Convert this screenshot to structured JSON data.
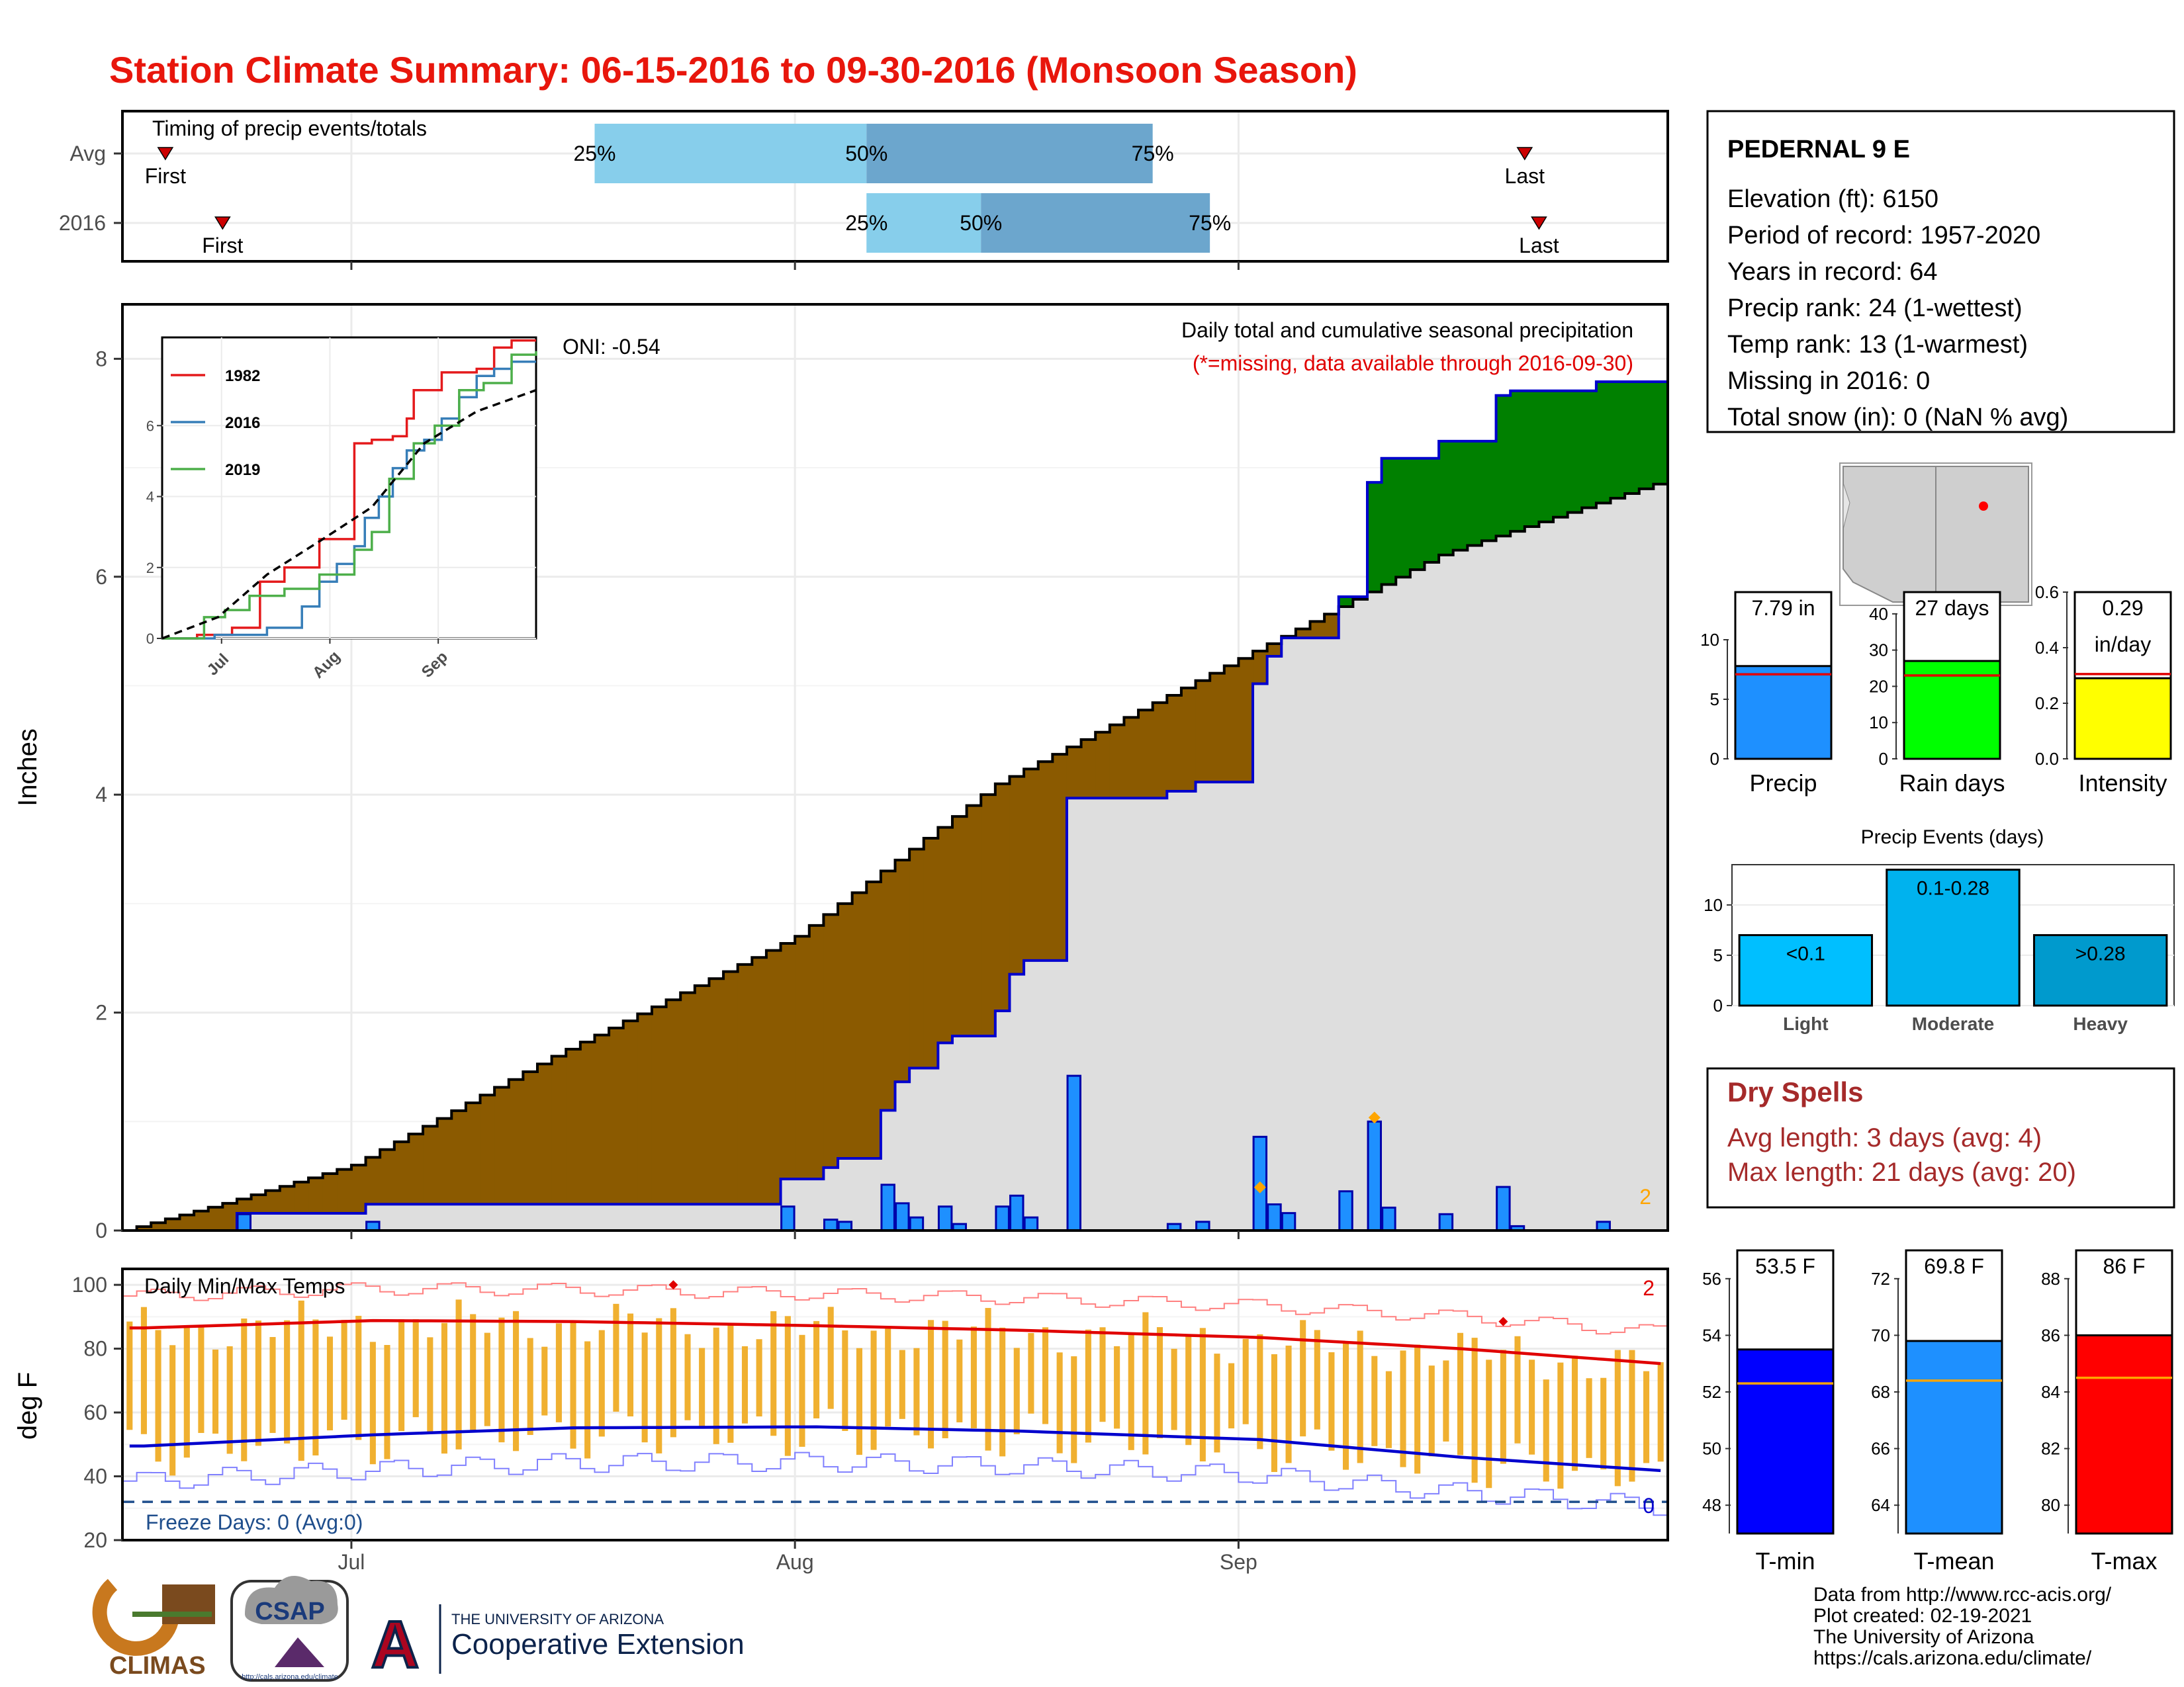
{
  "title": "Station Climate Summary: 06-15-2016 to 09-30-2016 (Monsoon Season)",
  "timing": {
    "title": "Timing of precip events/totals",
    "rows": [
      {
        "label": "Avg",
        "first_label": "First",
        "last_label": "Last",
        "first": "06-17",
        "last": "09-20",
        "q25": "07-17",
        "q50": "08-05",
        "q75": "08-25",
        "pct_labels": [
          "25%",
          "50%",
          "75%"
        ]
      },
      {
        "label": "2016",
        "first_label": "First",
        "last_label": "Last",
        "first": "06-21",
        "last": "09-21",
        "q25": "08-05",
        "q50": "08-13",
        "q75": "08-29",
        "pct_labels": [
          "25%",
          "50%",
          "75%"
        ]
      }
    ],
    "colors": {
      "q25_50": "#87ceeb",
      "q50_75": "#6ca6cd",
      "marker": "#cc0000"
    }
  },
  "station": {
    "name": "PEDERNAL 9 E",
    "lines": [
      "Elevation (ft): 6150",
      "Period of record: 1957-2020",
      "Years in record: 64",
      "Precip rank: 24 (1-wettest)",
      "Temp rank: 13 (1-warmest)",
      "Missing in 2016: 0",
      "Total snow (in): 0 (NaN % avg)"
    ]
  },
  "precip_panel": {
    "ylabel": "Inches",
    "annotation_title": "Daily total and cumulative seasonal precipitation",
    "annotation_note": "(*=missing, data available through 2016-09-30)",
    "oni": "ONI: -0.54",
    "count_label": "2",
    "colors": {
      "observed_line": "#0000cd",
      "above": "#008000",
      "below": "#8b5a00",
      "bars": "#1e90ff",
      "normal_fill": "#dedede",
      "missing_marker": "#ffa500"
    }
  },
  "temp_panel": {
    "ylabel": "deg F",
    "title": "Daily Min/Max Temps",
    "freeze": "Freeze Days: 0 (Avg:0)",
    "record_count": "2",
    "freeze_count": "0",
    "colors": {
      "bars": "#f0b030",
      "avg_max": "#e00000",
      "avg_min": "#0000cd",
      "record_max": "#ff8080",
      "record_min": "#8080ff",
      "freeze_line": "#1f4e8c"
    }
  },
  "inset": {
    "series": [
      {
        "name": "1982",
        "color": "#e41a1c"
      },
      {
        "name": "2016",
        "color": "#377eb8"
      },
      {
        "name": "2019",
        "color": "#4daf4a"
      }
    ],
    "xticks": [
      "Jul",
      "Aug",
      "Sep"
    ]
  },
  "map": {
    "caption": ""
  },
  "bar_summary": {
    "precip": {
      "value_label": "7.79 in",
      "label": "Precip",
      "value": 7.79,
      "avg": 7.1,
      "color": "#1e90ff"
    },
    "raindays": {
      "value_label": "27 days",
      "label": "Rain days",
      "value": 27,
      "avg": 23,
      "color": "#00ff00"
    },
    "intensity": {
      "value_label": "0.29",
      "value_label2": "in/day",
      "label": "Intensity",
      "value": 0.29,
      "avg": 0.305,
      "color": "#ffff00"
    }
  },
  "events": {
    "title": "Precip Events (days)",
    "items": [
      {
        "label": "Light",
        "value_label": "<0.1",
        "value": 7,
        "color": "#00bfff"
      },
      {
        "label": "Moderate",
        "value_label": "0.1-0.28",
        "value": 13.5,
        "color": "#00b2ee"
      },
      {
        "label": "Heavy",
        "value_label": ">0.28",
        "value": 7,
        "color": "#009acd"
      }
    ]
  },
  "dry_spells": {
    "title": "Dry Spells",
    "avg": "Avg length: 3 days (avg: 4)",
    "max": "Max length: 21 days (avg: 20)"
  },
  "temp_summary": {
    "tmin": {
      "value_label": "53.5 F",
      "label": "T-min",
      "value": 53.5,
      "avg": 52.3,
      "ylim": [
        47,
        57
      ],
      "ticks": [
        48,
        50,
        52,
        54,
        56
      ],
      "color": "#0000ff"
    },
    "tmean": {
      "value_label": "69.8 F",
      "label": "T-mean",
      "value": 69.8,
      "avg": 68.4,
      "ylim": [
        63,
        73
      ],
      "ticks": [
        64,
        66,
        68,
        70,
        72
      ],
      "color": "#1e90ff"
    },
    "tmax": {
      "value_label": "86 F",
      "label": "T-max",
      "value": 86,
      "avg": 84.5,
      "ylim": [
        79,
        89
      ],
      "ticks": [
        80,
        82,
        84,
        86,
        88
      ],
      "color": "#ff0000"
    }
  },
  "footer": {
    "credits": [
      "Data from http://www.rcc-acis.org/",
      "Plot created: 02-19-2021",
      "The University of Arizona",
      "https://cals.arizona.edu/climate/"
    ],
    "logos": {
      "climas": "CLIMAS",
      "csap": "CSAP",
      "csap_url": "http://cals.arizona.edu/climate",
      "ua_small": "THE UNIVERSITY OF ARIZONA",
      "ua_big": "Cooperative Extension",
      "ua_letter": "A"
    }
  },
  "chart_data": [
    {
      "type": "area",
      "title": "Daily total and cumulative seasonal precipitation",
      "ylabel": "Inches",
      "xlim": [
        "06-15",
        "09-30"
      ],
      "ylim": [
        0,
        8.5
      ],
      "xticks": [
        "Jul",
        "Aug",
        "Sep"
      ],
      "yticks": [
        0,
        2,
        4,
        6,
        8
      ],
      "cumulative_normal": {
        "x": [
          "06-15",
          "06-22",
          "07-01",
          "07-15",
          "08-01",
          "08-15",
          "09-01",
          "09-15",
          "09-30"
        ],
        "y": [
          0,
          0.25,
          0.6,
          1.6,
          2.7,
          4.1,
          5.25,
          6.2,
          6.85
        ]
      },
      "daily_2016": {
        "x": [
          "06-22",
          "07-01",
          "07-30",
          "08-02",
          "08-03",
          "08-06",
          "08-07",
          "08-08",
          "08-10",
          "08-11",
          "08-14",
          "08-15",
          "08-16",
          "08-19",
          "08-26",
          "08-28",
          "09-01",
          "09-02",
          "09-03",
          "09-07",
          "09-09",
          "09-10",
          "09-14",
          "09-18",
          "09-19",
          "09-25"
        ],
        "y": [
          0.15,
          0.08,
          0.22,
          0.1,
          0.08,
          0.42,
          0.25,
          0.12,
          0.22,
          0.06,
          0.22,
          0.32,
          0.12,
          1.42,
          0.06,
          0.08,
          0.86,
          0.24,
          0.16,
          0.36,
          1.0,
          0.21,
          0.15,
          0.4,
          0.04,
          0.08
        ]
      },
      "cumulative_2016_total": 7.79
    },
    {
      "type": "line",
      "title": "",
      "xticks": [
        "Jul",
        "Aug",
        "Sep"
      ],
      "yticks": [
        0,
        2,
        4,
        6
      ],
      "ylim": [
        0,
        8.3
      ],
      "series": [
        {
          "name": "1982",
          "x": [
            0,
            10,
            20,
            28,
            35,
            45,
            55,
            60,
            66,
            70,
            72,
            80,
            90,
            95,
            100,
            107
          ],
          "y": [
            0,
            0.1,
            0.3,
            1.6,
            2.0,
            2.8,
            5.5,
            5.6,
            5.7,
            6.2,
            7.0,
            7.5,
            7.6,
            8.2,
            8.4,
            8.4
          ]
        },
        {
          "name": "2016",
          "x": [
            0,
            15,
            30,
            40,
            45,
            50,
            55,
            58,
            62,
            66,
            70,
            75,
            80,
            85,
            90,
            95,
            100,
            107
          ],
          "y": [
            0,
            0.1,
            0.3,
            0.9,
            1.6,
            2.1,
            2.6,
            3.4,
            4.0,
            4.8,
            5.3,
            5.6,
            6.2,
            6.8,
            7.4,
            7.6,
            7.8,
            7.8
          ]
        },
        {
          "name": "2019",
          "x": [
            0,
            12,
            18,
            25,
            35,
            45,
            55,
            60,
            65,
            72,
            78,
            85,
            92,
            100,
            107
          ],
          "y": [
            0,
            0.6,
            0.8,
            1.2,
            1.4,
            1.8,
            2.5,
            3.0,
            4.5,
            5.5,
            6.0,
            7.0,
            7.2,
            8.0,
            8.1
          ]
        },
        {
          "name": "Avg",
          "x": [
            0,
            16,
            30,
            46,
            60,
            75,
            90,
            107
          ],
          "y": [
            0,
            0.6,
            1.8,
            2.8,
            3.7,
            5.5,
            6.4,
            7.0
          ]
        }
      ]
    },
    {
      "type": "bar",
      "title": "Daily Min/Max Temps",
      "ylabel": "deg F",
      "ylim": [
        20,
        105
      ],
      "yticks": [
        20,
        40,
        60,
        80,
        100
      ],
      "xticks": [
        "Jul",
        "Aug",
        "Sep"
      ],
      "avg_max": {
        "x": [
          "06-15",
          "07-01",
          "07-15",
          "08-01",
          "08-15",
          "09-01",
          "09-15",
          "09-30"
        ],
        "y": [
          86.5,
          88.8,
          88.5,
          87.2,
          85.8,
          83.5,
          80.0,
          75.0
        ]
      },
      "avg_min": {
        "x": [
          "06-15",
          "07-01",
          "07-15",
          "08-01",
          "08-15",
          "09-01",
          "09-15",
          "09-30"
        ],
        "y": [
          49.5,
          53.0,
          55.2,
          55.5,
          54.2,
          51.5,
          46.0,
          41.5
        ]
      },
      "freeze_threshold": 32
    },
    {
      "type": "bar",
      "title": "",
      "categories": [
        "Precip"
      ],
      "values": [
        7.79
      ],
      "ylim": [
        0,
        14
      ],
      "yticks": [
        0,
        5,
        10
      ]
    },
    {
      "type": "bar",
      "title": "",
      "categories": [
        "Rain days"
      ],
      "values": [
        27
      ],
      "ylim": [
        0,
        46
      ],
      "yticks": [
        0,
        10,
        20,
        30,
        40
      ]
    },
    {
      "type": "bar",
      "title": "",
      "categories": [
        "Intensity"
      ],
      "values": [
        0.29
      ],
      "ylim": [
        0,
        0.6
      ],
      "yticks": [
        0.0,
        0.2,
        0.4,
        0.6
      ]
    },
    {
      "type": "bar",
      "title": "Precip Events (days)",
      "categories": [
        "Light",
        "Moderate",
        "Heavy"
      ],
      "values": [
        7,
        13.5,
        7
      ],
      "ylim": [
        0,
        14
      ],
      "yticks": [
        0,
        5,
        10
      ]
    },
    {
      "type": "bar",
      "title": "",
      "categories": [
        "T-min",
        "T-mean",
        "T-max"
      ],
      "values": [
        53.5,
        69.8,
        86
      ]
    }
  ]
}
